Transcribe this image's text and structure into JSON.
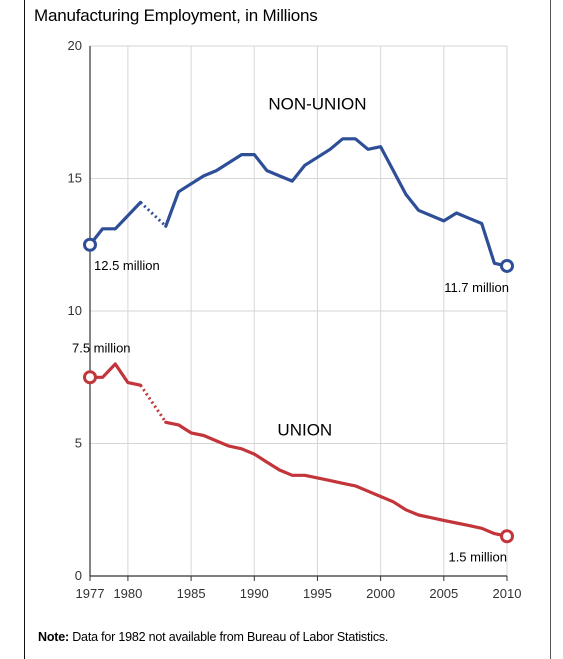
{
  "chart_data": {
    "type": "line",
    "title": "Manufacturing Employment, in Millions",
    "xlim": [
      1977,
      2010
    ],
    "ylim": [
      0,
      20
    ],
    "x_ticks": [
      1977,
      1980,
      1985,
      1990,
      1995,
      2000,
      2005,
      2010
    ],
    "y_ticks": [
      0,
      5,
      10,
      15,
      20
    ],
    "grid": true,
    "series": [
      {
        "name": "NON-UNION",
        "color": "#2e4f97",
        "segments": [
          [
            [
              1977,
              12.5
            ],
            [
              1978,
              13.1
            ],
            [
              1979,
              13.1
            ],
            [
              1980,
              13.6
            ],
            [
              1981,
              14.1
            ]
          ],
          [
            [
              1983,
              13.2
            ],
            [
              1984,
              14.5
            ],
            [
              1985,
              14.8
            ],
            [
              1986,
              15.1
            ],
            [
              1987,
              15.3
            ],
            [
              1988,
              15.6
            ],
            [
              1989,
              15.9
            ],
            [
              1990,
              15.9
            ],
            [
              1991,
              15.3
            ],
            [
              1992,
              15.1
            ],
            [
              1993,
              14.9
            ],
            [
              1994,
              15.5
            ],
            [
              1995,
              15.8
            ],
            [
              1996,
              16.1
            ],
            [
              1997,
              16.5
            ],
            [
              1998,
              16.5
            ],
            [
              1999,
              16.1
            ],
            [
              2000,
              16.2
            ],
            [
              2001,
              15.3
            ],
            [
              2002,
              14.4
            ],
            [
              2003,
              13.8
            ],
            [
              2004,
              13.6
            ],
            [
              2005,
              13.4
            ],
            [
              2006,
              13.7
            ],
            [
              2007,
              13.5
            ],
            [
              2008,
              13.3
            ],
            [
              2009,
              11.8
            ],
            [
              2010,
              11.7
            ]
          ]
        ],
        "gap": [
          [
            1981,
            14.1
          ],
          [
            1983,
            13.2
          ]
        ]
      },
      {
        "name": "UNION",
        "color": "#c2353b",
        "segments": [
          [
            [
              1977,
              7.5
            ],
            [
              1978,
              7.5
            ],
            [
              1979,
              8.0
            ],
            [
              1980,
              7.3
            ],
            [
              1981,
              7.2
            ]
          ],
          [
            [
              1983,
              5.8
            ],
            [
              1984,
              5.7
            ],
            [
              1985,
              5.4
            ],
            [
              1986,
              5.3
            ],
            [
              1987,
              5.1
            ],
            [
              1988,
              4.9
            ],
            [
              1989,
              4.8
            ],
            [
              1990,
              4.6
            ],
            [
              1991,
              4.3
            ],
            [
              1992,
              4.0
            ],
            [
              1993,
              3.8
            ],
            [
              1994,
              3.8
            ],
            [
              1995,
              3.7
            ],
            [
              1996,
              3.6
            ],
            [
              1997,
              3.5
            ],
            [
              1998,
              3.4
            ],
            [
              1999,
              3.2
            ],
            [
              2000,
              3.0
            ],
            [
              2001,
              2.8
            ],
            [
              2002,
              2.5
            ],
            [
              2003,
              2.3
            ],
            [
              2004,
              2.2
            ],
            [
              2005,
              2.1
            ],
            [
              2006,
              2.0
            ],
            [
              2007,
              1.9
            ],
            [
              2008,
              1.8
            ],
            [
              2009,
              1.6
            ],
            [
              2010,
              1.5
            ]
          ]
        ],
        "gap": [
          [
            1981,
            7.2
          ],
          [
            1983,
            5.8
          ]
        ]
      }
    ],
    "annotations": [
      {
        "text": "12.5 million",
        "x": 1977,
        "y": 12.5
      },
      {
        "text": "11.7 million",
        "x": 2010,
        "y": 11.7
      },
      {
        "text": "7.5 million",
        "x": 1977,
        "y": 7.5
      },
      {
        "text": "1.5 million",
        "x": 2010,
        "y": 1.5
      }
    ],
    "note": {
      "label": "Note:",
      "text": "Data for 1982 not available from Bureau of Labor Statistics."
    }
  }
}
